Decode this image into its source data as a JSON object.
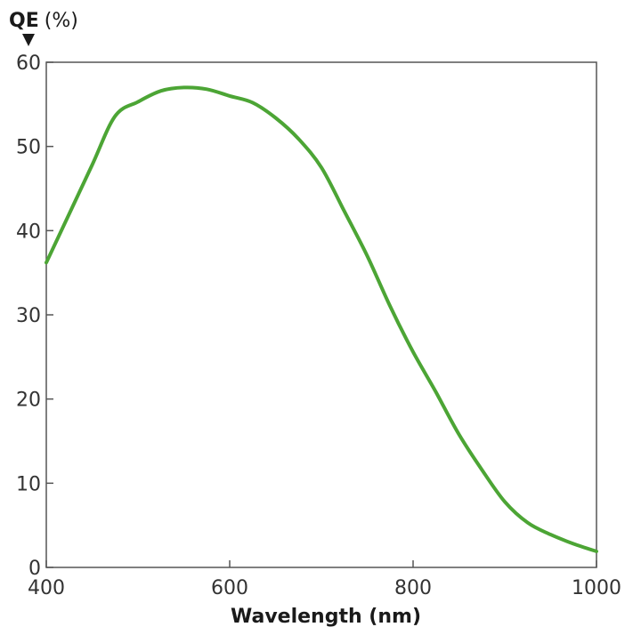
{
  "chart_data": {
    "type": "line",
    "xlabel": "Wavelength (nm)",
    "ylabel_main": "QE",
    "ylabel_unit": "(%)",
    "xlim": [
      400,
      1000
    ],
    "ylim": [
      0,
      60
    ],
    "xticks": [
      400,
      600,
      800,
      1000
    ],
    "yticks": [
      0,
      10,
      20,
      30,
      40,
      50,
      60
    ],
    "grid": false,
    "series": [
      {
        "color": "#4ca535",
        "x": [
          400,
          425,
          450,
          475,
          500,
          525,
          550,
          575,
          600,
          625,
          650,
          675,
          700,
          725,
          750,
          775,
          800,
          825,
          850,
          875,
          900,
          925,
          950,
          975,
          1000
        ],
        "y": [
          36.2,
          42.0,
          47.8,
          53.6,
          55.3,
          56.6,
          57.0,
          56.8,
          56.0,
          55.2,
          53.4,
          50.9,
          47.5,
          42.3,
          37.0,
          31.0,
          25.6,
          20.8,
          15.8,
          11.6,
          7.8,
          5.3,
          3.9,
          2.8,
          1.9
        ]
      }
    ]
  }
}
